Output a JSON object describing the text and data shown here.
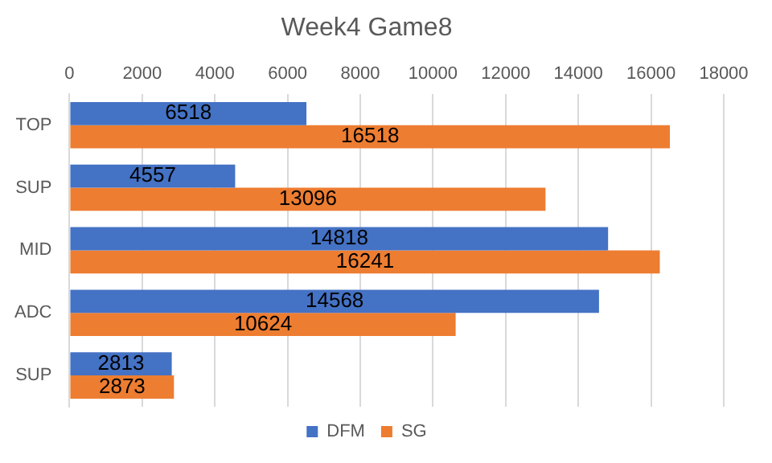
{
  "chart_data": {
    "type": "bar",
    "orientation": "horizontal",
    "title": "Week4 Game8",
    "categories": [
      "TOP",
      "SUP",
      "MID",
      "ADC",
      "SUP"
    ],
    "series": [
      {
        "name": "DFM",
        "color": "#4472c4",
        "values": [
          6518,
          4557,
          14818,
          14568,
          2813
        ]
      },
      {
        "name": "SG",
        "color": "#ed7d31",
        "values": [
          16518,
          13096,
          16241,
          10624,
          2873
        ]
      }
    ],
    "xlim": [
      0,
      18000
    ],
    "xticks": [
      0,
      2000,
      4000,
      6000,
      8000,
      10000,
      12000,
      14000,
      16000,
      18000
    ],
    "grid": "x",
    "legend": "bottom",
    "data_labels": true
  }
}
